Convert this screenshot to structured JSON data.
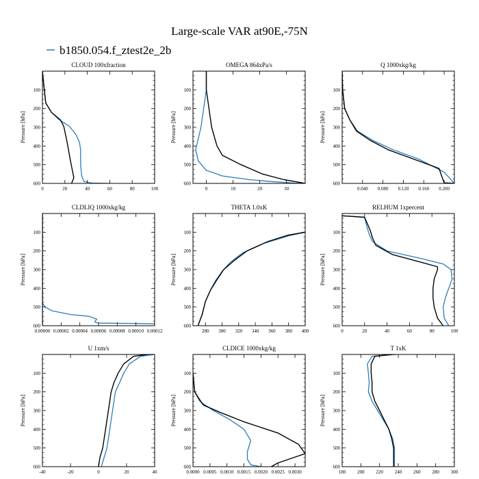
{
  "figure": {
    "title": "Large-scale VAR at90E,-75N",
    "legend_label": "b1850.054.f_ztest2e_2b",
    "legend_color": "#2b7bb9",
    "legend_position": "top-left"
  },
  "colors": {
    "model": "#2b7bb9",
    "reference": "#000000"
  },
  "chart_data": [
    {
      "type": "line",
      "title": "CLOUD  100xfraction",
      "ylabel": "Pressure [hPa]",
      "xlim": [
        0,
        100
      ],
      "ylim": [
        600,
        0
      ],
      "y_inverted": true,
      "xticks": [
        "0",
        "20",
        "40",
        "60",
        "80",
        "100"
      ],
      "xtick_values": [
        0,
        20,
        40,
        60,
        80,
        100
      ],
      "yticks": [
        "100",
        "200",
        "300",
        "400",
        "500",
        "600"
      ],
      "series": [
        {
          "name": "b1850.054.f_ztest2e_2b",
          "color": "#2b7bb9",
          "x": [
            0,
            1,
            3,
            8,
            15,
            24,
            30,
            33,
            34,
            34,
            35,
            37,
            44,
            60
          ],
          "y": [
            0,
            60,
            170,
            220,
            260,
            295,
            340,
            380,
            420,
            500,
            560,
            590,
            598,
            600
          ]
        },
        {
          "color": "#000000",
          "x": [
            0,
            1,
            3,
            8,
            16,
            19,
            22,
            25,
            27,
            28,
            26
          ],
          "y": [
            0,
            60,
            170,
            220,
            260,
            295,
            380,
            480,
            540,
            570,
            600
          ]
        }
      ]
    },
    {
      "type": "line",
      "title": "OMEGA  864xPa/s",
      "ylabel": "Pressure [hPa]",
      "xlim": [
        -5,
        37
      ],
      "ylim": [
        600,
        0
      ],
      "y_inverted": true,
      "xticks": [
        "0",
        "10",
        "20",
        "30"
      ],
      "xtick_values": [
        0,
        10,
        20,
        30
      ],
      "yticks": [
        "100",
        "200",
        "300",
        "400",
        "500",
        "600"
      ],
      "series": [
        {
          "name": "b1850.054.f_ztest2e_2b",
          "color": "#2b7bb9",
          "x": [
            0,
            0,
            -1,
            -2,
            -3,
            -4,
            -3,
            0,
            6,
            16,
            26,
            33,
            37
          ],
          "y": [
            0,
            100,
            200,
            300,
            360,
            420,
            480,
            530,
            560,
            580,
            592,
            598,
            600
          ]
        },
        {
          "color": "#000000",
          "x": [
            0,
            0,
            1,
            2,
            4,
            6,
            13,
            21,
            29,
            35,
            37
          ],
          "y": [
            0,
            100,
            200,
            300,
            400,
            450,
            500,
            550,
            580,
            595,
            600
          ]
        }
      ]
    },
    {
      "type": "line",
      "title": "Q  1000xkg/kg",
      "ylabel": "Pressure [hPa]",
      "xlim": [
        0,
        0.22
      ],
      "ylim": [
        600,
        0
      ],
      "y_inverted": true,
      "xticks": [
        "0.040",
        "0.080",
        "0.120",
        "0.160",
        "0.200"
      ],
      "xtick_values": [
        0.04,
        0.08,
        0.12,
        0.16,
        0.2
      ],
      "yticks": [
        "100",
        "200",
        "300",
        "400",
        "500",
        "600"
      ],
      "series": [
        {
          "name": "b1850.054.f_ztest2e_2b",
          "color": "#2b7bb9",
          "x": [
            0,
            0.001,
            0.005,
            0.015,
            0.03,
            0.06,
            0.1,
            0.15,
            0.2,
            0.22
          ],
          "y": [
            0,
            100,
            200,
            260,
            320,
            370,
            420,
            470,
            540,
            600
          ]
        },
        {
          "color": "#000000",
          "x": [
            0,
            0.001,
            0.005,
            0.015,
            0.028,
            0.055,
            0.09,
            0.14,
            0.19,
            0.195,
            0.2,
            0.22
          ],
          "y": [
            0,
            100,
            200,
            260,
            320,
            370,
            420,
            470,
            520,
            560,
            597,
            600
          ]
        }
      ]
    },
    {
      "type": "line",
      "title": "CLDLIQ  1000xkg/kg",
      "ylabel": "Pressure [hPa]",
      "xlim": [
        0,
        0.00012
      ],
      "ylim": [
        600,
        0
      ],
      "y_inverted": true,
      "xticks": [
        "0.00000",
        "0.00002",
        "0.00004",
        "0.00006",
        "0.00008",
        "0.00010",
        "0.00012"
      ],
      "xtick_values": [
        0,
        2e-05,
        4e-05,
        6e-05,
        8e-05,
        0.0001,
        0.00012
      ],
      "yticks": [
        "100",
        "200",
        "300",
        "400",
        "500",
        "600"
      ],
      "series": [
        {
          "name": "b1850.054.f_ztest2e_2b",
          "color": "#2b7bb9",
          "x": [
            0,
            0,
            3e-06,
            1e-05,
            3e-05,
            5e-05,
            5.8e-05,
            5.6e-05,
            6e-05,
            0.0001,
            0.00012
          ],
          "y": [
            0,
            480,
            500,
            520,
            540,
            550,
            565,
            580,
            586,
            588,
            590
          ]
        },
        {
          "color": "#000000",
          "x": [
            0,
            0
          ],
          "y": [
            0,
            600
          ]
        }
      ]
    },
    {
      "type": "line",
      "title": "THETA  1.0xK",
      "ylabel": "Pressure [hPa]",
      "xlim": [
        265,
        400
      ],
      "ylim": [
        600,
        0
      ],
      "y_inverted": true,
      "xticks": [
        "280",
        "300",
        "320",
        "340",
        "360",
        "380",
        "400"
      ],
      "xtick_values": [
        280,
        300,
        320,
        340,
        360,
        380,
        400
      ],
      "yticks": [
        "100",
        "200",
        "300",
        "400",
        "500",
        "600"
      ],
      "series": [
        {
          "name": "b1850.054.f_ztest2e_2b",
          "color": "#2b7bb9",
          "x": [
            400,
            380,
            350,
            325,
            310,
            300,
            292,
            286,
            280,
            276,
            271
          ],
          "y": [
            100,
            120,
            160,
            210,
            260,
            310,
            360,
            410,
            470,
            540,
            600
          ]
        },
        {
          "color": "#000000",
          "x": [
            400,
            380,
            355,
            330,
            315,
            302,
            293,
            286,
            280,
            276,
            271
          ],
          "y": [
            100,
            115,
            150,
            200,
            250,
            300,
            360,
            410,
            470,
            540,
            600
          ]
        }
      ]
    },
    {
      "type": "line",
      "title": "RELHUM  1xpercent",
      "ylabel": "Pressure [hPa]",
      "xlim": [
        0,
        100
      ],
      "ylim": [
        600,
        0
      ],
      "y_inverted": true,
      "xticks": [
        "0",
        "20",
        "40",
        "60",
        "80",
        "100"
      ],
      "xtick_values": [
        0,
        20,
        40,
        60,
        80,
        100
      ],
      "yticks": [
        "100",
        "200",
        "300",
        "400",
        "500",
        "600"
      ],
      "series": [
        {
          "name": "b1850.054.f_ztest2e_2b",
          "color": "#2b7bb9",
          "x": [
            0,
            20,
            22,
            24,
            27,
            40,
            70,
            90,
            97,
            98,
            95,
            92,
            90,
            91,
            95
          ],
          "y": [
            12,
            20,
            70,
            110,
            150,
            200,
            240,
            270,
            300,
            350,
            400,
            450,
            500,
            560,
            600
          ]
        },
        {
          "color": "#000000",
          "x": [
            0,
            20,
            25,
            27,
            30,
            45,
            70,
            85,
            85,
            82,
            81,
            81,
            82,
            85,
            90
          ],
          "y": [
            12,
            20,
            90,
            130,
            170,
            220,
            260,
            285,
            300,
            350,
            400,
            450,
            500,
            560,
            600
          ]
        }
      ]
    },
    {
      "type": "line",
      "title": "U  1xm/s",
      "ylabel": "Pressure [hPa]",
      "xlim": [
        -40,
        40
      ],
      "ylim": [
        600,
        0
      ],
      "y_inverted": true,
      "xticks": [
        "-40",
        "-20",
        "0",
        "20",
        "40"
      ],
      "xtick_values": [
        -40,
        -20,
        0,
        20,
        40
      ],
      "yticks": [
        "100",
        "200",
        "300",
        "400",
        "500",
        "600"
      ],
      "series": [
        {
          "name": "b1850.054.f_ztest2e_2b",
          "color": "#2b7bb9",
          "x": [
            40,
            30,
            22,
            18,
            15,
            12,
            10,
            8,
            6,
            4,
            2
          ],
          "y": [
            0,
            10,
            50,
            100,
            150,
            200,
            300,
            400,
            500,
            550,
            600
          ]
        },
        {
          "color": "#000000",
          "x": [
            35,
            25,
            18,
            14,
            11,
            9,
            7,
            5,
            3,
            1,
            0
          ],
          "y": [
            0,
            10,
            50,
            100,
            150,
            200,
            300,
            400,
            500,
            550,
            600
          ]
        }
      ]
    },
    {
      "type": "line",
      "title": "CLDICE  1000xkg/kg",
      "ylabel": "Pressure [hPa]",
      "xlim": [
        0,
        0.0033
      ],
      "ylim": [
        600,
        0
      ],
      "y_inverted": true,
      "xticks": [
        "0.0000",
        "0.0005",
        "0.0010",
        "0.0015",
        "0.0020",
        "0.0025",
        "0.0030"
      ],
      "xtick_values": [
        0,
        0.0005,
        0.001,
        0.0015,
        0.002,
        0.0025,
        0.003
      ],
      "yticks": [
        "100",
        "200",
        "300",
        "400",
        "500",
        "600"
      ],
      "series": [
        {
          "name": "b1850.054.f_ztest2e_2b",
          "color": "#2b7bb9",
          "x": [
            0,
            5e-05,
            0.0002,
            0.0006,
            0.0011,
            0.0015,
            0.0017,
            0.0016,
            0.0016,
            0.0017,
            0.002
          ],
          "y": [
            100,
            200,
            250,
            300,
            350,
            400,
            460,
            520,
            560,
            590,
            600
          ]
        },
        {
          "color": "#000000",
          "x": [
            0,
            5e-05,
            0.0003,
            0.0008,
            0.0015,
            0.0025,
            0.0031,
            0.0033,
            0.0025,
            0.0023
          ],
          "y": [
            100,
            200,
            270,
            310,
            360,
            420,
            480,
            530,
            580,
            600
          ]
        }
      ]
    },
    {
      "type": "line",
      "title": "T  1xK",
      "ylabel": "Pressure [hPa]",
      "xlim": [
        180,
        300
      ],
      "ylim": [
        600,
        0
      ],
      "y_inverted": true,
      "xticks": [
        "180",
        "200",
        "220",
        "240",
        "260",
        "280",
        "300"
      ],
      "xtick_values": [
        180,
        200,
        220,
        240,
        260,
        280,
        300
      ],
      "yticks": [
        "100",
        "200",
        "300",
        "400",
        "500",
        "600"
      ],
      "series": [
        {
          "name": "b1850.054.f_ztest2e_2b",
          "color": "#2b7bb9",
          "x": [
            238,
            212,
            207,
            208,
            209,
            208,
            212,
            218,
            224,
            230,
            234,
            236,
            236
          ],
          "y": [
            0,
            10,
            50,
            100,
            150,
            200,
            250,
            300,
            350,
            400,
            450,
            500,
            600
          ]
        },
        {
          "color": "#000000",
          "x": [
            233,
            215,
            211,
            211,
            212,
            212,
            215,
            220,
            225,
            230,
            233,
            235,
            235
          ],
          "y": [
            0,
            10,
            50,
            100,
            150,
            200,
            250,
            300,
            350,
            400,
            450,
            500,
            600
          ]
        }
      ]
    }
  ]
}
